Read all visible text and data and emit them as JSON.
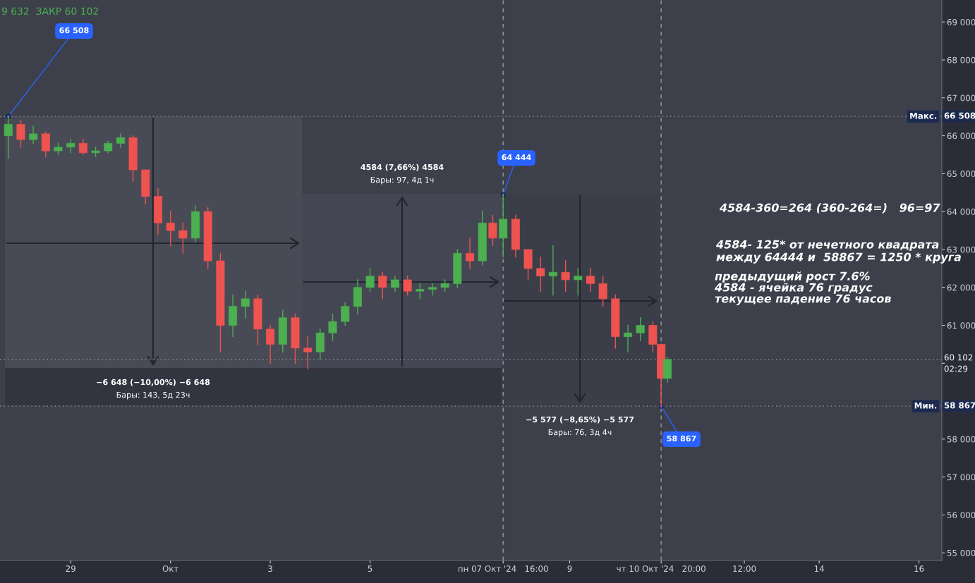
{
  "chart_data": {
    "type": "candlestick",
    "x": [
      "2024-09-27T18:00",
      "2024-09-28T00:00",
      "2024-09-28T06:00",
      "2024-09-28T12:00",
      "2024-09-28T18:00",
      "2024-09-29T00:00",
      "2024-09-29T06:00",
      "2024-09-29T12:00",
      "2024-09-29T18:00",
      "2024-09-30T00:00",
      "2024-09-30T06:00",
      "2024-09-30T12:00",
      "2024-09-30T18:00",
      "2024-10-01T00:00",
      "2024-10-01T06:00",
      "2024-10-01T12:00",
      "2024-10-01T18:00",
      "2024-10-02T00:00",
      "2024-10-02T06:00",
      "2024-10-02T12:00",
      "2024-10-02T18:00",
      "2024-10-03T00:00",
      "2024-10-03T06:00",
      "2024-10-03T12:00",
      "2024-10-03T18:00",
      "2024-10-04T00:00",
      "2024-10-04T06:00",
      "2024-10-04T12:00",
      "2024-10-04T18:00",
      "2024-10-05T00:00",
      "2024-10-05T06:00",
      "2024-10-05T12:00",
      "2024-10-05T18:00",
      "2024-10-06T00:00",
      "2024-10-06T06:00",
      "2024-10-06T12:00",
      "2024-10-06T18:00",
      "2024-10-07T00:00",
      "2024-10-07T06:00",
      "2024-10-07T11:00",
      "2024-10-07T16:00",
      "2024-10-07T22:00",
      "2024-10-08T04:00",
      "2024-10-08T10:00",
      "2024-10-08T16:00",
      "2024-10-08T22:00",
      "2024-10-09T04:00",
      "2024-10-09T10:00",
      "2024-10-09T16:00",
      "2024-10-09T22:00",
      "2024-10-10T04:00",
      "2024-10-10T10:00",
      "2024-10-10T16:00",
      "2024-10-10T20:00",
      "2024-10-10T23:00"
    ],
    "ohlc": [
      [
        66000,
        66508,
        65400,
        66300
      ],
      [
        66300,
        66400,
        65700,
        65900
      ],
      [
        65900,
        66250,
        65800,
        66050
      ],
      [
        66050,
        66100,
        65450,
        65600
      ],
      [
        65600,
        65800,
        65500,
        65700
      ],
      [
        65700,
        65900,
        65550,
        65800
      ],
      [
        65800,
        65900,
        65500,
        65550
      ],
      [
        65550,
        65700,
        65450,
        65600
      ],
      [
        65600,
        65850,
        65550,
        65800
      ],
      [
        65800,
        66050,
        65700,
        65950
      ],
      [
        65950,
        66000,
        64800,
        65100
      ],
      [
        65100,
        65100,
        64200,
        64400
      ],
      [
        64400,
        64600,
        63400,
        63700
      ],
      [
        63700,
        64000,
        63100,
        63500
      ],
      [
        63500,
        63700,
        62900,
        63300
      ],
      [
        63300,
        64150,
        63200,
        64000
      ],
      [
        64000,
        64100,
        62500,
        62700
      ],
      [
        62700,
        62900,
        60300,
        61000
      ],
      [
        61000,
        61800,
        60700,
        61500
      ],
      [
        61500,
        61900,
        61200,
        61700
      ],
      [
        61700,
        61800,
        60500,
        60900
      ],
      [
        60900,
        61000,
        60000,
        60500
      ],
      [
        60500,
        61400,
        60300,
        61200
      ],
      [
        61200,
        61300,
        60000,
        60400
      ],
      [
        60400,
        60700,
        59850,
        60300
      ],
      [
        60300,
        60900,
        60100,
        60800
      ],
      [
        60800,
        61300,
        60600,
        61100
      ],
      [
        61100,
        61600,
        61000,
        61500
      ],
      [
        61500,
        62200,
        61300,
        62000
      ],
      [
        62000,
        62500,
        61900,
        62300
      ],
      [
        62300,
        62400,
        61700,
        62000
      ],
      [
        62000,
        62300,
        61900,
        62200
      ],
      [
        62200,
        62300,
        61800,
        61900
      ],
      [
        61900,
        62100,
        61700,
        61950
      ],
      [
        61950,
        62100,
        61800,
        62000
      ],
      [
        62000,
        62200,
        61900,
        62100
      ],
      [
        62100,
        63000,
        62000,
        62900
      ],
      [
        62900,
        63300,
        62500,
        62700
      ],
      [
        62700,
        64000,
        62600,
        63700
      ],
      [
        63700,
        63900,
        63100,
        63300
      ],
      [
        63300,
        64444,
        62800,
        63800
      ],
      [
        63800,
        63900,
        62800,
        63000
      ],
      [
        63000,
        63000,
        62200,
        62500
      ],
      [
        62500,
        62800,
        61900,
        62300
      ],
      [
        62300,
        63100,
        61800,
        62400
      ],
      [
        62400,
        62700,
        61900,
        62200
      ],
      [
        62200,
        62500,
        61800,
        62300
      ],
      [
        62300,
        62500,
        61900,
        62100
      ],
      [
        62100,
        62300,
        61500,
        61700
      ],
      [
        61700,
        61800,
        60400,
        60700
      ],
      [
        60700,
        61000,
        60300,
        60800
      ],
      [
        60800,
        61200,
        60600,
        61000
      ],
      [
        61000,
        61100,
        60300,
        60500
      ],
      [
        60500,
        60500,
        58867,
        59600
      ],
      [
        59600,
        60150,
        59500,
        60102
      ]
    ],
    "colors": [
      "#4caf50",
      "#ef5350",
      "#4caf50",
      "#ef5350",
      "#4caf50",
      "#4caf50",
      "#ef5350",
      "#4caf50",
      "#4caf50",
      "#4caf50",
      "#ef5350",
      "#ef5350",
      "#ef5350",
      "#ef5350",
      "#ef5350",
      "#4caf50",
      "#ef5350",
      "#ef5350",
      "#4caf50",
      "#4caf50",
      "#ef5350",
      "#ef5350",
      "#4caf50",
      "#ef5350",
      "#ef5350",
      "#4caf50",
      "#4caf50",
      "#4caf50",
      "#4caf50",
      "#4caf50",
      "#ef5350",
      "#4caf50",
      "#ef5350",
      "#4caf50",
      "#4caf50",
      "#4caf50",
      "#4caf50",
      "#ef5350",
      "#4caf50",
      "#ef5350",
      "#4caf50",
      "#ef5350",
      "#ef5350",
      "#ef5350",
      "#4caf50",
      "#ef5350",
      "#4caf50",
      "#ef5350",
      "#ef5350",
      "#ef5350",
      "#4caf50",
      "#4caf50",
      "#ef5350",
      "#ef5350",
      "#4caf50"
    ],
    "xlim": [
      "2024-09-27T14:00",
      "2024-10-16T11:00"
    ],
    "xticks": [
      {
        "value": "2024-09-29",
        "label": "29"
      },
      {
        "value": "2024-10-01",
        "label": "Окт"
      },
      {
        "value": "2024-10-03",
        "label": "3"
      },
      {
        "value": "2024-10-05",
        "label": "5"
      },
      {
        "value": "2024-10-07T16:00",
        "label": "пн 07 Окт '24   16:00"
      },
      {
        "value": "2024-10-09",
        "label": "9"
      },
      {
        "value": "2024-10-10T20:00",
        "label": "чт 10 Окт '24   20:00"
      },
      {
        "value": "2024-10-12T12:00",
        "label": "12:00"
      },
      {
        "value": "2024-10-14",
        "label": "14"
      },
      {
        "value": "2024-10-16",
        "label": "16"
      }
    ],
    "ylim": [
      54800,
      69580
    ],
    "yticks": [
      {
        "value": 55000,
        "label": "55 000"
      },
      {
        "value": 56000,
        "label": "56 000"
      },
      {
        "value": 57000,
        "label": "57 000"
      },
      {
        "value": 58000,
        "label": "58 000"
      },
      {
        "value": 59000,
        "label": null
      },
      {
        "value": 60000,
        "label": null
      },
      {
        "value": 61000,
        "label": "61 000"
      },
      {
        "value": 62000,
        "label": "62 000"
      },
      {
        "value": 63000,
        "label": "63 000"
      },
      {
        "value": 64000,
        "label": "64 000"
      },
      {
        "value": 65000,
        "label": "65 000"
      },
      {
        "value": 66000,
        "label": "66 000"
      },
      {
        "value": 67000,
        "label": "67 000"
      },
      {
        "value": 68000,
        "label": "68 000"
      },
      {
        "value": 69000,
        "label": "69 000"
      }
    ],
    "grid": false,
    "ref_lines": [
      {
        "axis": "y",
        "value": 66508,
        "label": "Макс.",
        "color": "#8a8d96",
        "line_style": "dotted"
      },
      {
        "axis": "y",
        "value": 58867,
        "label": "Мин.",
        "color": "#8a8d96",
        "line_style": "dotted"
      },
      {
        "axis": "y",
        "value": 60102,
        "color": "#8a8d96",
        "line_style": "dotted"
      },
      {
        "axis": "x",
        "value": "2024-10-07T16:00",
        "color": "#9598a1",
        "line_style": "dashed"
      },
      {
        "axis": "x",
        "value": "2024-10-10T20:00",
        "color": "#9598a1",
        "line_style": "dashed"
      }
    ],
    "annotations": [
      "9 632  ЗАКР 60 102",
      {
        "text": "66 508",
        "x": "2024-09-27T18:00",
        "y": 66508
      },
      {
        "text": "64 444",
        "x": "2024-10-07T16:00",
        "y": 64444
      },
      {
        "text": "58 867",
        "x": "2024-10-10T20:00",
        "y": 58867
      },
      "−6 648 (−10,00%) −6 648",
      "Бары: 143, 5д 23ч",
      "4584 (7,66%) 4584",
      "Бары: 97, 4д 1ч",
      "−5 577 (−8,65%) −5 577",
      "Бары: 76, 3д 4ч",
      "4584-360=264 (360-264=)   96=97",
      "4584- 125* от нечетного квадрата",
      "между 64444 и  58867 = 1250 * круга",
      "предыдущий рост 7.6%",
      "4584 - ячейка 76 градус",
      "текущее падение 76 часов",
      "66 508",
      "60 102",
      "02:29",
      "58 867"
    ]
  }
}
